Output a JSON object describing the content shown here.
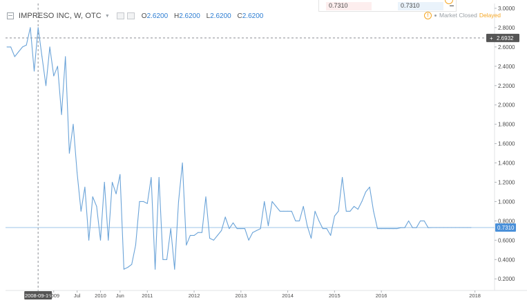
{
  "header": {
    "symbol_title": "IMPRESO INC, W, OTC",
    "ohlc": [
      {
        "label": "O",
        "value": "2.6200"
      },
      {
        "label": "H",
        "value": "2.6200"
      },
      {
        "label": "L",
        "value": "2.6200"
      },
      {
        "label": "C",
        "value": "2.6200"
      }
    ]
  },
  "top_panel": {
    "left_value": "0.7310",
    "right_value": "0.7310"
  },
  "status": {
    "text": "Market Closed",
    "delayed": "Delayed"
  },
  "colors": {
    "line": "#6aa3d8",
    "price_tag": "#4a90d9",
    "crosshair_tag": "#555555",
    "status_orange": "#f5a623"
  },
  "crosshair": {
    "price": 2.6932,
    "label": "2.6932",
    "date_label": "2008-09-15"
  },
  "last_price": {
    "value": 0.731,
    "label": "0.7310"
  },
  "chart_data": {
    "type": "line",
    "ylim": [
      0.08,
      3.05
    ],
    "y_ticks": [
      "3.0000",
      "2.8000",
      "2.6000",
      "2.4000",
      "2.2000",
      "2.0000",
      "1.8000",
      "1.6000",
      "1.4000",
      "1.2000",
      "1.0000",
      "0.8000",
      "0.6000",
      "0.4000",
      "0.2000"
    ],
    "x_ticks": [
      "2008-09-15",
      "2009",
      "Jul",
      "2010",
      "Jun",
      "2011",
      "2012",
      "2013",
      "2014",
      "2015",
      "2016",
      "2018"
    ],
    "x": [
      "2008-01",
      "2008-02",
      "2008-03",
      "2008-04",
      "2008-05",
      "2008-06",
      "2008-07",
      "2008-08",
      "2008-09",
      "2008-10",
      "2008-11",
      "2008-12",
      "2009-01",
      "2009-02",
      "2009-03",
      "2009-04",
      "2009-05",
      "2009-06",
      "2009-07",
      "2009-08",
      "2009-09",
      "2009-10",
      "2009-11",
      "2009-12",
      "2010-01",
      "2010-02",
      "2010-03",
      "2010-04",
      "2010-05",
      "2010-06",
      "2010-07",
      "2010-08",
      "2010-09",
      "2010-10",
      "2010-11",
      "2010-12",
      "2011-01",
      "2011-02",
      "2011-03",
      "2011-04",
      "2011-05",
      "2011-06",
      "2011-07",
      "2011-08",
      "2011-09",
      "2011-10",
      "2011-11",
      "2011-12",
      "2012-01",
      "2012-02",
      "2012-03",
      "2012-04",
      "2012-05",
      "2012-06",
      "2012-07",
      "2012-08",
      "2012-09",
      "2012-10",
      "2012-11",
      "2012-12",
      "2013-01",
      "2013-02",
      "2013-03",
      "2013-04",
      "2013-05",
      "2013-06",
      "2013-07",
      "2013-08",
      "2013-09",
      "2013-10",
      "2013-11",
      "2013-12",
      "2014-01",
      "2014-02",
      "2014-03",
      "2014-04",
      "2014-05",
      "2014-06",
      "2014-07",
      "2014-08",
      "2014-09",
      "2014-10",
      "2014-11",
      "2014-12",
      "2015-01",
      "2015-02",
      "2015-03",
      "2015-04",
      "2015-05",
      "2015-06",
      "2015-07",
      "2015-08",
      "2015-09",
      "2015-10",
      "2015-11",
      "2015-12",
      "2016-01",
      "2016-02",
      "2016-03",
      "2016-04",
      "2016-05",
      "2016-06",
      "2016-07",
      "2016-08",
      "2016-09",
      "2016-10",
      "2016-11",
      "2016-12",
      "2017-01",
      "2017-02",
      "2017-03",
      "2017-04",
      "2017-05",
      "2017-06",
      "2017-07",
      "2017-08",
      "2017-09",
      "2017-10",
      "2017-11",
      "2017-12"
    ],
    "values": [
      2.6,
      2.6,
      2.5,
      2.55,
      2.6,
      2.62,
      2.8,
      2.35,
      2.8,
      2.5,
      2.2,
      2.6,
      2.3,
      2.4,
      1.9,
      2.5,
      1.5,
      1.8,
      1.3,
      0.9,
      1.15,
      0.6,
      1.05,
      0.95,
      0.6,
      1.2,
      0.6,
      1.2,
      1.08,
      1.28,
      0.3,
      0.32,
      0.35,
      0.55,
      1.0,
      1.0,
      0.98,
      1.25,
      0.3,
      1.25,
      0.4,
      0.4,
      0.72,
      0.3,
      1.0,
      1.4,
      0.55,
      0.65,
      0.65,
      0.68,
      0.68,
      1.05,
      0.62,
      0.6,
      0.65,
      0.7,
      0.84,
      0.72,
      0.78,
      0.72,
      0.72,
      0.72,
      0.6,
      0.68,
      0.7,
      0.72,
      1.0,
      0.75,
      1.0,
      0.95,
      0.9,
      0.9,
      0.9,
      0.9,
      0.8,
      0.8,
      0.95,
      0.75,
      0.62,
      0.9,
      0.8,
      0.72,
      0.72,
      0.65,
      0.85,
      0.9,
      1.25,
      0.9,
      0.9,
      0.95,
      0.92,
      1.0,
      1.1,
      1.15,
      0.9,
      0.72,
      0.72,
      0.72,
      0.72,
      0.72,
      0.72,
      0.73,
      0.73,
      0.8,
      0.73,
      0.73,
      0.8,
      0.8,
      0.73,
      0.731,
      0.731,
      0.731,
      0.731,
      0.731,
      0.731,
      0.731,
      0.731,
      0.731,
      0.731,
      0.731
    ],
    "grid": true,
    "legend": "none"
  }
}
